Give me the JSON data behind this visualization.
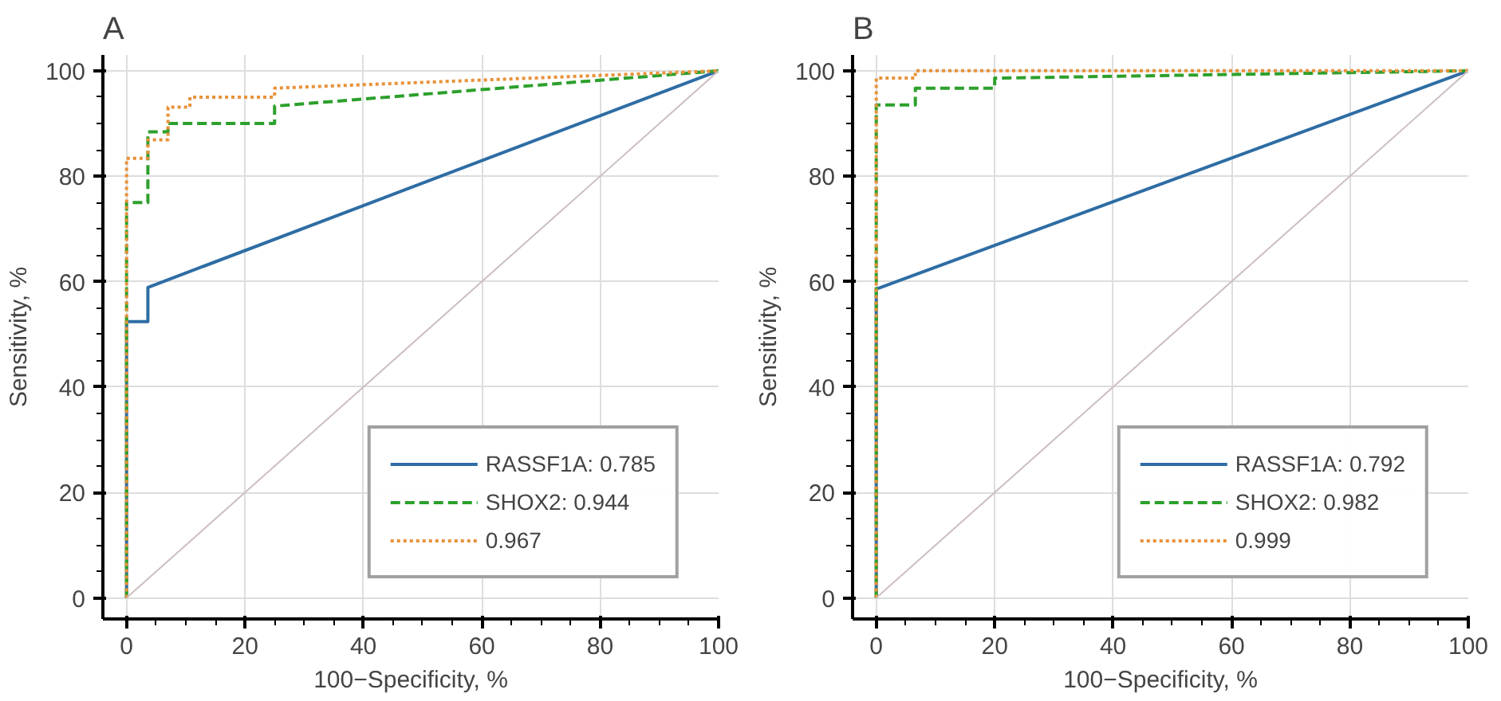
{
  "chart_data": [
    {
      "type": "line",
      "title": "A",
      "xlabel": "100−Specificity, %",
      "ylabel": "Sensitivity, %",
      "xlim": [
        -4,
        100
      ],
      "ylim": [
        -4,
        103
      ],
      "xticks": [
        0,
        20,
        40,
        60,
        80,
        100
      ],
      "yticks": [
        0,
        20,
        40,
        60,
        80,
        100
      ],
      "grid": true,
      "legend": "bottom right",
      "marker": "none",
      "series": [
        {
          "name": "RASSF1A: 0.785",
          "color": "#2e6da4",
          "line_style": "solid",
          "x": [
            0,
            0,
            3.6,
            3.6,
            100
          ],
          "values": [
            0,
            52.4,
            52.4,
            58.9,
            100
          ]
        },
        {
          "name": "SHOX2: 0.944",
          "color": "#2ca02c",
          "line_style": "dashed",
          "x": [
            0,
            0,
            3.6,
            3.6,
            7,
            7,
            25,
            25,
            100
          ],
          "values": [
            0,
            75,
            75,
            88.4,
            88.4,
            90,
            90,
            93.3,
            100
          ]
        },
        {
          "name": "0.967",
          "color": "#e8923a",
          "line_style": "dotted",
          "x": [
            0,
            0,
            3.6,
            3.6,
            7,
            7,
            10.7,
            10.7,
            25,
            25,
            100
          ],
          "values": [
            0,
            83.4,
            83.4,
            86.9,
            86.9,
            93.1,
            93.1,
            95,
            95,
            96.7,
            100
          ]
        },
        {
          "color": "#cdbfbf",
          "line_style": "solid",
          "x": [
            0,
            100
          ],
          "values": [
            0,
            100
          ]
        }
      ]
    },
    {
      "type": "line",
      "title": "B",
      "xlabel": "100−Specificity, %",
      "ylabel": "Sensitivity, %",
      "xlim": [
        -4,
        100
      ],
      "ylim": [
        -4,
        103
      ],
      "xticks": [
        0,
        20,
        40,
        60,
        80,
        100
      ],
      "yticks": [
        0,
        20,
        40,
        60,
        80,
        100
      ],
      "grid": true,
      "legend": "bottom right",
      "marker": "none",
      "series": [
        {
          "name": "RASSF1A: 0.792",
          "color": "#2e6da4",
          "line_style": "solid",
          "x": [
            0,
            0,
            100
          ],
          "values": [
            0,
            58.6,
            100
          ]
        },
        {
          "name": "SHOX2: 0.982",
          "color": "#2ca02c",
          "line_style": "dashed",
          "x": [
            0,
            0,
            6.6,
            6.6,
            20,
            20,
            100
          ],
          "values": [
            0,
            93.5,
            93.5,
            96.7,
            96.7,
            98.6,
            100
          ]
        },
        {
          "name": "0.999",
          "color": "#e8923a",
          "line_style": "dotted",
          "x": [
            0,
            0,
            6.6,
            6.6,
            100
          ],
          "values": [
            0,
            98.6,
            98.6,
            100,
            100
          ]
        },
        {
          "color": "#cdbfbf",
          "line_style": "solid",
          "x": [
            0,
            100
          ],
          "values": [
            0,
            100
          ]
        }
      ]
    }
  ]
}
